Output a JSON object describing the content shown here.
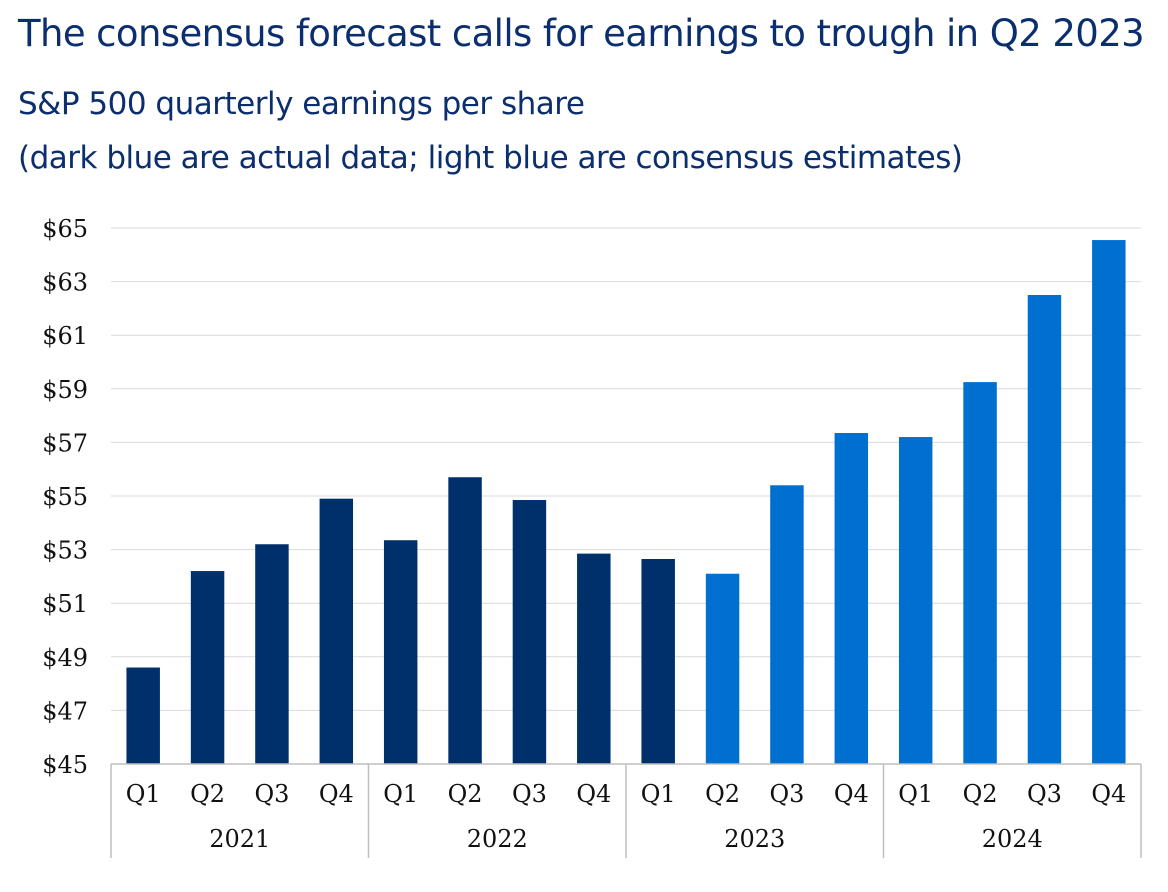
{
  "title": "The consensus forecast calls for earnings to trough in Q2 2023",
  "subtitle_line1": "S&P 500 quarterly earnings per share",
  "subtitle_line2": "(dark blue are actual data; light blue are consensus estimates)",
  "colors": {
    "actual": "#00306b",
    "estimate": "#0070d0",
    "title": "#0b2e6f"
  },
  "chart_data": {
    "type": "bar",
    "ylim": [
      45,
      65
    ],
    "yticks": [
      "$45",
      "$47",
      "$49",
      "$51",
      "$53",
      "$55",
      "$57",
      "$59",
      "$61",
      "$63",
      "$65"
    ],
    "ytick_values": [
      45,
      47,
      49,
      51,
      53,
      55,
      57,
      59,
      61,
      63,
      65
    ],
    "grid": true,
    "groups": [
      "2021",
      "2022",
      "2023",
      "2024"
    ],
    "categories": [
      "Q1",
      "Q2",
      "Q3",
      "Q4",
      "Q1",
      "Q2",
      "Q3",
      "Q4",
      "Q1",
      "Q2",
      "Q3",
      "Q4",
      "Q1",
      "Q2",
      "Q3",
      "Q4"
    ],
    "values": [
      48.6,
      52.2,
      53.2,
      54.9,
      53.35,
      55.7,
      54.85,
      52.85,
      52.65,
      52.1,
      55.4,
      57.35,
      57.2,
      59.25,
      62.5,
      64.55
    ],
    "kind": [
      "actual",
      "actual",
      "actual",
      "actual",
      "actual",
      "actual",
      "actual",
      "actual",
      "actual",
      "estimate",
      "estimate",
      "estimate",
      "estimate",
      "estimate",
      "estimate",
      "estimate"
    ]
  }
}
